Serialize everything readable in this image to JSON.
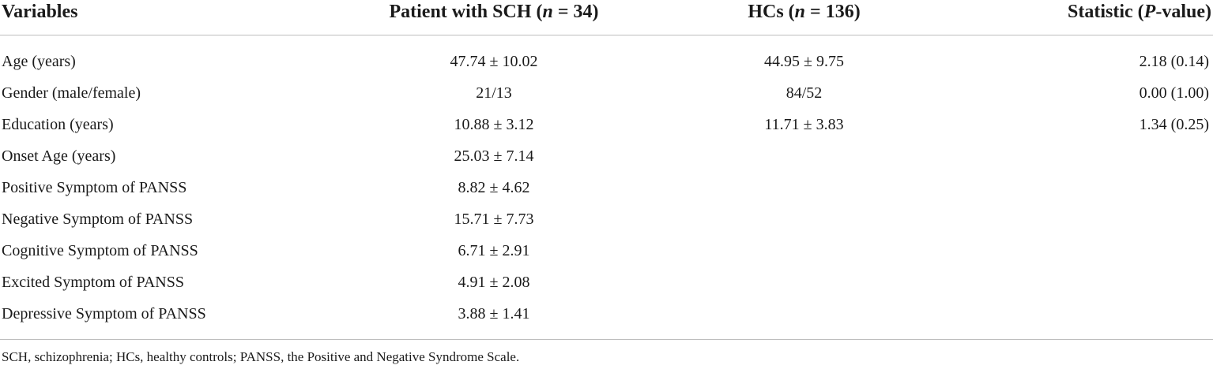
{
  "table": {
    "headers": {
      "variables": "Variables",
      "sch_prefix": "Patient with SCH (",
      "sch_n": "n",
      "sch_suffix": " = 34)",
      "hc_prefix": "HCs (",
      "hc_n": "n",
      "hc_suffix": " = 136)",
      "stat_prefix": "Statistic (",
      "stat_p": "P",
      "stat_suffix": "-value)"
    },
    "rows": [
      {
        "variable": "Age (years)",
        "sch": "47.74 ± 10.02",
        "hc": "44.95 ± 9.75",
        "stat": "2.18 (0.14)"
      },
      {
        "variable": "Gender (male/female)",
        "sch": "21/13",
        "hc": "84/52",
        "stat": "0.00 (1.00)"
      },
      {
        "variable": "Education (years)",
        "sch": "10.88 ± 3.12",
        "hc": "11.71 ± 3.83",
        "stat": "1.34 (0.25)"
      },
      {
        "variable": "Onset Age (years)",
        "sch": "25.03 ± 7.14",
        "hc": "",
        "stat": ""
      },
      {
        "variable": "Positive Symptom of PANSS",
        "sch": "8.82 ± 4.62",
        "hc": "",
        "stat": ""
      },
      {
        "variable": "Negative Symptom of PANSS",
        "sch": "15.71 ± 7.73",
        "hc": "",
        "stat": ""
      },
      {
        "variable": "Cognitive Symptom of PANSS",
        "sch": "6.71 ± 2.91",
        "hc": "",
        "stat": ""
      },
      {
        "variable": "Excited Symptom of PANSS",
        "sch": "4.91 ± 2.08",
        "hc": "",
        "stat": ""
      },
      {
        "variable": "Depressive Symptom of PANSS",
        "sch": "3.88 ± 1.41",
        "hc": "",
        "stat": ""
      }
    ],
    "footnote": "SCH, schizophrenia; HCs, healthy controls; PANSS, the Positive and Negative Syndrome Scale."
  }
}
